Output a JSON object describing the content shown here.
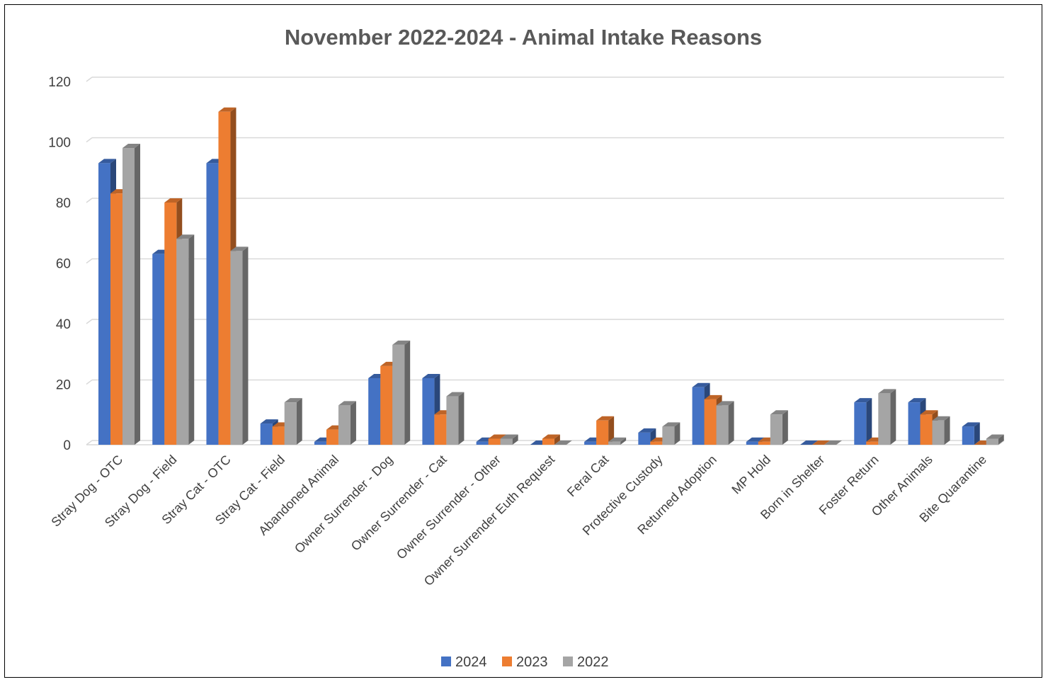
{
  "chart_data": {
    "type": "bar",
    "title": "November 2022-2024 - Animal Intake Reasons",
    "xlabel": "",
    "ylabel": "",
    "ylim": [
      0,
      120
    ],
    "yticks": [
      0,
      20,
      40,
      60,
      80,
      100,
      120
    ],
    "grid": true,
    "legend_position": "bottom",
    "categories": [
      "Stray Dog - OTC",
      "Stray Dog - Field",
      "Stray Cat - OTC",
      "Stray Cat - Field",
      "Abandoned Animal",
      "Owner Surrender - Dog",
      "Owner Surrender - Cat",
      "Owner Surrender - Other",
      "Owner Surrender Euth Request",
      "Feral Cat",
      "Protective Custody",
      "Returned Adoption",
      "MP Hold",
      "Born in Shelter",
      "Foster Return",
      "Other Animals",
      "Bite Quarantine"
    ],
    "series": [
      {
        "name": "2024",
        "color": "#4472C4",
        "values": [
          93,
          63,
          93,
          7,
          1,
          22,
          22,
          1,
          0,
          1,
          4,
          19,
          1,
          0,
          14,
          14,
          6
        ]
      },
      {
        "name": "2023",
        "color": "#ED7D31",
        "values": [
          83,
          80,
          110,
          6,
          5,
          26,
          10,
          2,
          2,
          8,
          1,
          15,
          1,
          0,
          1,
          10,
          0
        ]
      },
      {
        "name": "2022",
        "color": "#A5A5A5",
        "values": [
          98,
          68,
          64,
          14,
          13,
          33,
          16,
          2,
          0,
          1,
          6,
          13,
          10,
          0,
          17,
          8,
          2
        ]
      }
    ]
  }
}
